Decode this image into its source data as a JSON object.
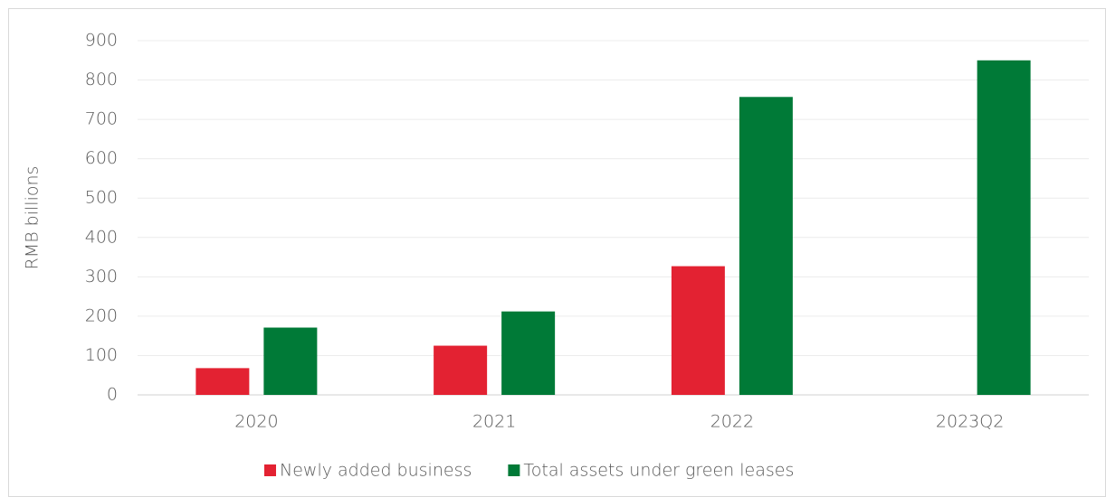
{
  "chart_data": {
    "type": "bar",
    "y_label": "RMB billions",
    "categories": [
      "2020",
      "2021",
      "2022",
      "2023Q2"
    ],
    "series": [
      {
        "name": "Newly added business",
        "color": "#e32232",
        "values": [
          68,
          125,
          327,
          null
        ]
      },
      {
        "name": "Total assets under green leases",
        "color": "#007a37",
        "values": [
          171,
          212,
          757,
          850
        ]
      }
    ],
    "ylim": [
      0,
      900
    ],
    "yticks": [
      0,
      100,
      200,
      300,
      400,
      500,
      600,
      700,
      800,
      900
    ],
    "grid": true,
    "legend": "bottom"
  }
}
